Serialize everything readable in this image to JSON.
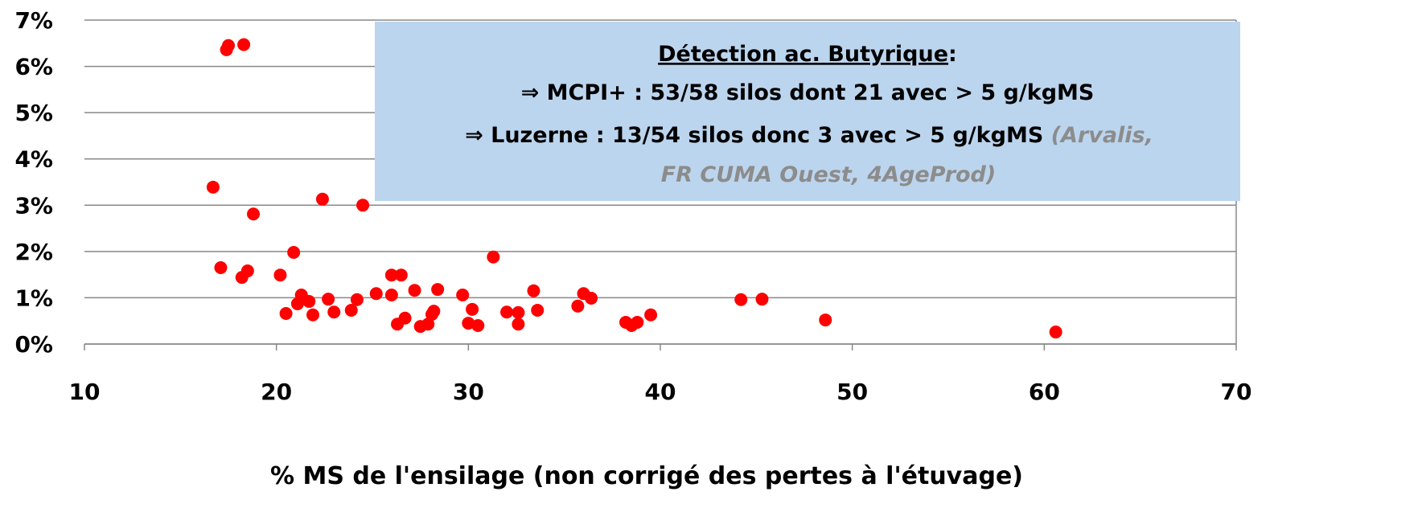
{
  "chart_data": {
    "type": "scatter",
    "x_label": "% MS de l'ensilage (non corrigé des pertes à l'étuvage)",
    "x": [
      17.4,
      17.5,
      18.3,
      16.7,
      17.1,
      18.2,
      18.5,
      18.8,
      22.4,
      24.5,
      20.9,
      20.2,
      20.5,
      21.1,
      21.3,
      21.7,
      21.9,
      22.7,
      23.0,
      23.9,
      24.2,
      25.2,
      26.0,
      26.5,
      26.0,
      26.3,
      26.7,
      27.2,
      27.5,
      27.9,
      28.1,
      28.2,
      28.4,
      29.7,
      30.0,
      30.2,
      30.5,
      31.3,
      32.0,
      32.6,
      32.6,
      33.4,
      33.6,
      35.7,
      36.0,
      36.4,
      38.2,
      38.5,
      38.8,
      39.5,
      44.2,
      45.3,
      48.6,
      60.6
    ],
    "values": [
      6.36,
      6.45,
      6.47,
      3.39,
      1.65,
      1.44,
      1.58,
      2.81,
      3.13,
      3.0,
      1.98,
      1.49,
      0.66,
      0.87,
      1.06,
      0.92,
      0.63,
      0.97,
      0.69,
      0.73,
      0.96,
      1.09,
      1.49,
      1.49,
      1.06,
      0.43,
      0.56,
      1.16,
      0.38,
      0.43,
      0.64,
      0.71,
      1.18,
      1.06,
      0.45,
      0.75,
      0.4,
      1.88,
      0.69,
      0.43,
      0.68,
      1.15,
      0.73,
      0.82,
      1.09,
      0.99,
      0.47,
      0.4,
      0.47,
      0.63,
      0.96,
      0.97,
      0.52,
      0.26
    ],
    "color": "#ff0000",
    "xlim": [
      10,
      70
    ],
    "xticks": [
      10,
      20,
      30,
      40,
      50,
      60,
      70
    ],
    "ylim": [
      0,
      7
    ],
    "yticks": [
      {
        "value": 0,
        "label": "0%"
      },
      {
        "value": 1,
        "label": "1%"
      },
      {
        "value": 2,
        "label": "2%"
      },
      {
        "value": 3,
        "label": "3%"
      },
      {
        "value": 4,
        "label": "4%"
      },
      {
        "value": 5,
        "label": "5%"
      },
      {
        "value": 6,
        "label": "6%"
      },
      {
        "value": 7,
        "label": "7%"
      }
    ],
    "grid": true,
    "annotation": {
      "heading": "Détection ac. Butyrique",
      "heading_suffix": ":",
      "line1": "⇒ MCPI+ : 53/58 silos dont 21 avec > 5 g/kgMS",
      "line2": "⇒ Luzerne : 13/54 silos donc 3 avec > 5 g/kgMS",
      "source_1": " (Arvalis,",
      "source_2": "FR CUMA Ouest, 4AgeProd)"
    }
  }
}
